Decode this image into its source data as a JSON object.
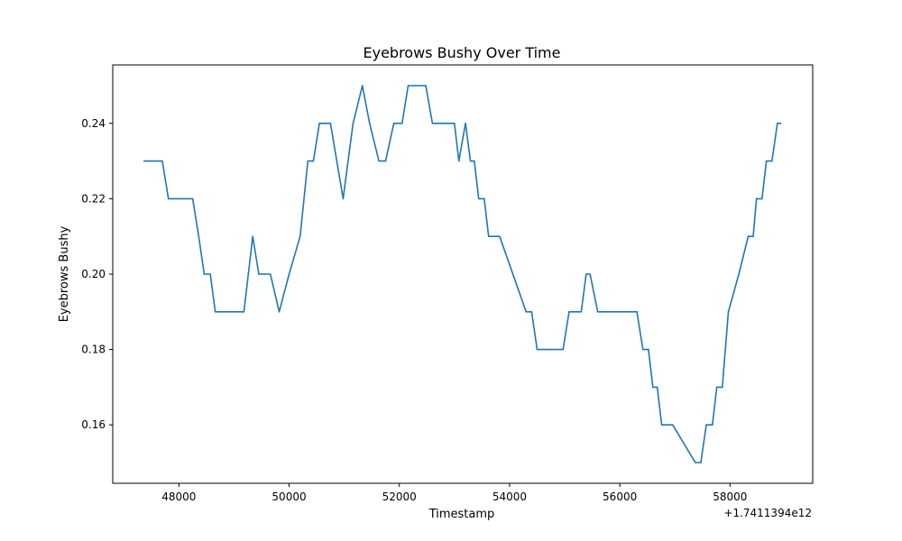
{
  "chart_data": {
    "type": "line",
    "title": "Eyebrows Bushy Over Time",
    "xlabel": "Timestamp",
    "ylabel": "Eyebrows Bushy",
    "x_offset_label": "+1.7411394e12",
    "xlim": [
      46800,
      59500
    ],
    "ylim": [
      0.1445,
      0.2555
    ],
    "x_ticks": [
      48000,
      50000,
      52000,
      54000,
      56000,
      58000
    ],
    "x_tick_labels": [
      "48000",
      "50000",
      "52000",
      "54000",
      "56000",
      "58000"
    ],
    "y_ticks": [
      0.16,
      0.18,
      0.2,
      0.22,
      0.24
    ],
    "y_tick_labels": [
      "0.16",
      "0.18",
      "0.20",
      "0.22",
      "0.24"
    ],
    "grid": false,
    "line_color": "#1f77b4",
    "series": [
      {
        "x": [
          47370,
          47480,
          47590,
          47700,
          47810,
          47920,
          48030,
          48140,
          48250,
          48360,
          48460,
          48570,
          48660,
          48760,
          48860,
          48970,
          49070,
          49180,
          49340,
          49450,
          49550,
          49660,
          49820,
          50000,
          50200,
          50340,
          50440,
          50550,
          50650,
          50750,
          50980,
          51160,
          51330,
          51460,
          51630,
          51750,
          51900,
          52050,
          52160,
          52280,
          52400,
          52480,
          52600,
          52700,
          52810,
          52900,
          53000,
          53080,
          53200,
          53290,
          53360,
          53440,
          53540,
          53620,
          53720,
          53820,
          54300,
          54400,
          54500,
          54650,
          54750,
          54970,
          55080,
          55190,
          55300,
          55390,
          55460,
          55600,
          55700,
          55800,
          55950,
          56060,
          56170,
          56310,
          56420,
          56520,
          56600,
          56680,
          56760,
          56860,
          56960,
          57370,
          57470,
          57570,
          57680,
          57760,
          57860,
          57970,
          58160,
          58330,
          58420,
          58480,
          58580,
          58660,
          58760,
          58860,
          58920
        ],
        "y": [
          0.23,
          0.23,
          0.23,
          0.23,
          0.22,
          0.22,
          0.22,
          0.22,
          0.22,
          0.21,
          0.2,
          0.2,
          0.19,
          0.19,
          0.19,
          0.19,
          0.19,
          0.19,
          0.21,
          0.2,
          0.2,
          0.2,
          0.19,
          0.2,
          0.21,
          0.23,
          0.23,
          0.24,
          0.24,
          0.24,
          0.22,
          0.24,
          0.25,
          0.24,
          0.23,
          0.23,
          0.24,
          0.24,
          0.25,
          0.25,
          0.25,
          0.25,
          0.24,
          0.24,
          0.24,
          0.24,
          0.24,
          0.23,
          0.24,
          0.23,
          0.23,
          0.22,
          0.22,
          0.21,
          0.21,
          0.21,
          0.19,
          0.19,
          0.18,
          0.18,
          0.18,
          0.18,
          0.19,
          0.19,
          0.19,
          0.2,
          0.2,
          0.19,
          0.19,
          0.19,
          0.19,
          0.19,
          0.19,
          0.19,
          0.18,
          0.18,
          0.17,
          0.17,
          0.16,
          0.16,
          0.16,
          0.15,
          0.15,
          0.16,
          0.16,
          0.17,
          0.17,
          0.19,
          0.2,
          0.21,
          0.21,
          0.22,
          0.22,
          0.23,
          0.23,
          0.24,
          0.24
        ]
      }
    ]
  }
}
